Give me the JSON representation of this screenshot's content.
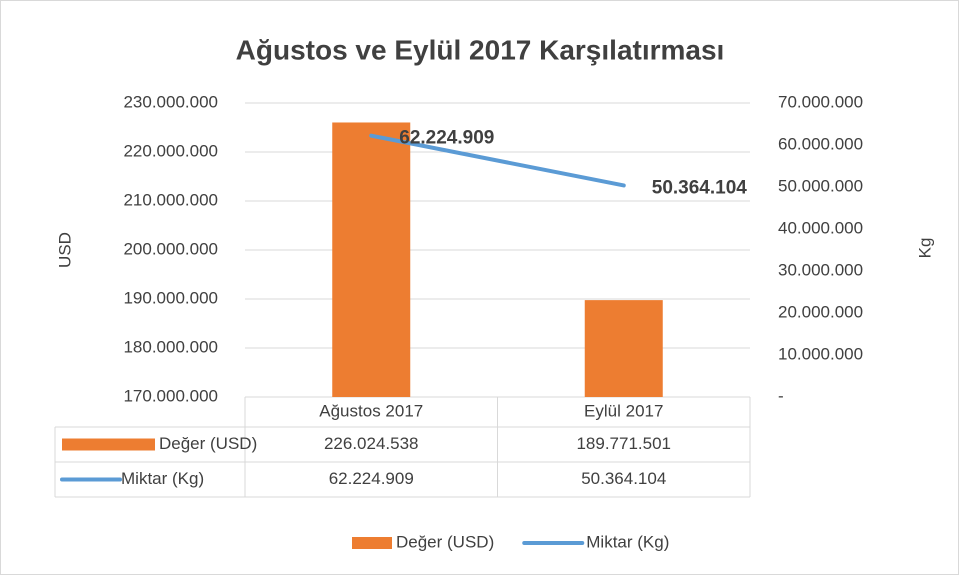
{
  "chart_data": {
    "type": "bar-line",
    "title": "Ağustos ve Eylül 2017 Karşılatırması",
    "ylabel": "USD",
    "y2label": "Kg",
    "categories": [
      "Ağustos 2017",
      "Eylül 2017"
    ],
    "series": [
      {
        "name": "Değer (USD)",
        "type": "bar",
        "color": "#ed7d31",
        "values": [
          226024538,
          189771501
        ],
        "value_labels": [
          "226.024.538",
          "189.771.501"
        ]
      },
      {
        "name": "Miktar (Kg)",
        "type": "line",
        "axis": "y2",
        "color": "#5b9bd5",
        "values": [
          62224909,
          50364104
        ],
        "value_labels": [
          "62.224.909",
          "50.364.104"
        ]
      }
    ],
    "ylim": [
      170000000,
      230000000
    ],
    "yticks": [
      {
        "value": 170000000,
        "label": "170.000.000"
      },
      {
        "value": 180000000,
        "label": "180.000.000"
      },
      {
        "value": 190000000,
        "label": "190.000.000"
      },
      {
        "value": 200000000,
        "label": "200.000.000"
      },
      {
        "value": 210000000,
        "label": "210.000.000"
      },
      {
        "value": 220000000,
        "label": "220.000.000"
      },
      {
        "value": 230000000,
        "label": "230.000.000"
      }
    ],
    "y2lim": [
      0,
      70000000
    ],
    "y2ticks": [
      {
        "value": 0,
        "label": "-"
      },
      {
        "value": 10000000,
        "label": "10.000.000"
      },
      {
        "value": 20000000,
        "label": "20.000.000"
      },
      {
        "value": 30000000,
        "label": "30.000.000"
      },
      {
        "value": 40000000,
        "label": "40.000.000"
      },
      {
        "value": 50000000,
        "label": "50.000.000"
      },
      {
        "value": 60000000,
        "label": "60.000.000"
      },
      {
        "value": 70000000,
        "label": "70.000.000"
      }
    ],
    "grid": true,
    "legend": "bottom",
    "data_table": true
  }
}
